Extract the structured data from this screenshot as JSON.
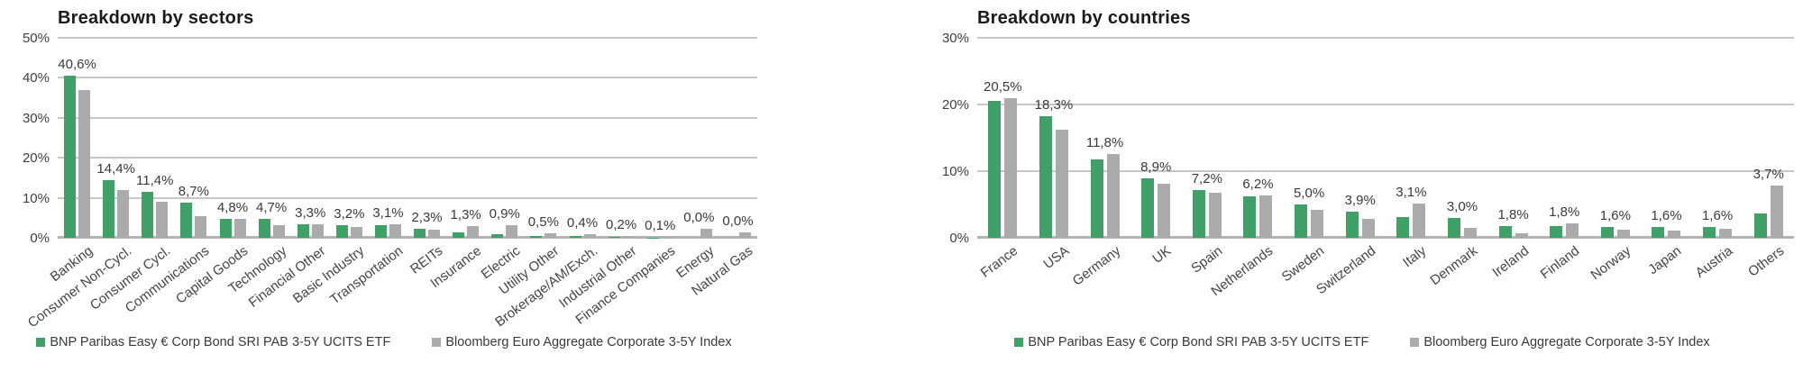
{
  "colors": {
    "etf_green": "#3FA068",
    "index_gray": "#ABABAB",
    "gridline": "#C7C7C7",
    "baseline": "#B3B3B3",
    "title_text": "#1B1B1B",
    "axis_text": "#3F3F3F"
  },
  "chart_data": [
    {
      "type": "bar",
      "title": "Breakdown by sectors",
      "xlabel": "",
      "ylabel": "",
      "ylim": [
        0,
        50
      ],
      "grid": true,
      "legend_position": "bottom",
      "yticks": [
        {
          "v": 0,
          "label": "0%"
        },
        {
          "v": 10,
          "label": "10%"
        },
        {
          "v": 20,
          "label": "20%"
        },
        {
          "v": 30,
          "label": "30%"
        },
        {
          "v": 40,
          "label": "40%"
        },
        {
          "v": 50,
          "label": "50%"
        }
      ],
      "categories": [
        "Banking",
        "Consumer Non-Cycl.",
        "Consumer Cycl.",
        "Communications",
        "Capital Goods",
        "Technology",
        "Financial Other",
        "Basic Industry",
        "Transportation",
        "REITs",
        "Insurance",
        "Electric",
        "Utility Other",
        "Brokerage/AM/Exch.",
        "Industrial Other",
        "Finance Companies",
        "Energy",
        "Natural Gas"
      ],
      "series": [
        {
          "name": "BNP Paribas Easy € Corp Bond SRI PAB 3-5Y UCITS ETF",
          "color": "#3FA068",
          "values": [
            40.6,
            14.4,
            11.4,
            8.7,
            4.8,
            4.7,
            3.3,
            3.2,
            3.1,
            2.3,
            1.3,
            0.9,
            0.5,
            0.4,
            0.2,
            0.1,
            0.0,
            0.0
          ],
          "labels": [
            "40,6%",
            "14,4%",
            "11,4%",
            "8,7%",
            "4,8%",
            "4,7%",
            "3,3%",
            "3,2%",
            "3,1%",
            "2,3%",
            "1,3%",
            "0,9%",
            "0,5%",
            "0,4%",
            "0,2%",
            "0,1%",
            "0,0%",
            "0,0%"
          ]
        },
        {
          "name": "Bloomberg Euro Aggregate Corporate 3-5Y Index",
          "color": "#ABABAB",
          "values": [
            37.0,
            12.0,
            9.0,
            5.5,
            4.8,
            3.2,
            3.3,
            2.7,
            3.4,
            2.1,
            3.0,
            3.2,
            1.1,
            0.9,
            0.4,
            0.2,
            2.3,
            1.4
          ]
        }
      ]
    },
    {
      "type": "bar",
      "title": "Breakdown by countries",
      "xlabel": "",
      "ylabel": "",
      "ylim": [
        0,
        30
      ],
      "grid": true,
      "legend_position": "bottom",
      "yticks": [
        {
          "v": 0,
          "label": "0%"
        },
        {
          "v": 10,
          "label": "10%"
        },
        {
          "v": 20,
          "label": "20%"
        },
        {
          "v": 30,
          "label": "30%"
        }
      ],
      "categories": [
        "France",
        "USA",
        "Germany",
        "UK",
        "Spain",
        "Netherlands",
        "Sweden",
        "Switzerland",
        "Italy",
        "Denmark",
        "Ireland",
        "Finland",
        "Norway",
        "Japan",
        "Austria",
        "Others"
      ],
      "series": [
        {
          "name": "BNP Paribas Easy € Corp Bond SRI PAB 3-5Y UCITS ETF",
          "color": "#3FA068",
          "values": [
            20.5,
            18.3,
            11.8,
            8.9,
            7.2,
            6.2,
            5.0,
            3.9,
            3.1,
            3.0,
            1.8,
            1.8,
            1.6,
            1.6,
            1.6,
            3.7
          ],
          "labels": [
            "20,5%",
            "18,3%",
            "11,8%",
            "8,9%",
            "7,2%",
            "6,2%",
            "5,0%",
            "3,9%",
            "3,1%",
            "3,0%",
            "1,8%",
            "1,8%",
            "1,6%",
            "1,6%",
            "1,6%",
            "3,7%"
          ]
        },
        {
          "name": "Bloomberg Euro Aggregate Corporate 3-5Y Index",
          "color": "#ABABAB",
          "values": [
            21.0,
            16.2,
            12.6,
            8.1,
            6.7,
            6.4,
            4.2,
            2.9,
            5.2,
            1.5,
            0.7,
            2.1,
            1.2,
            1.1,
            1.3,
            7.8
          ]
        }
      ]
    }
  ]
}
